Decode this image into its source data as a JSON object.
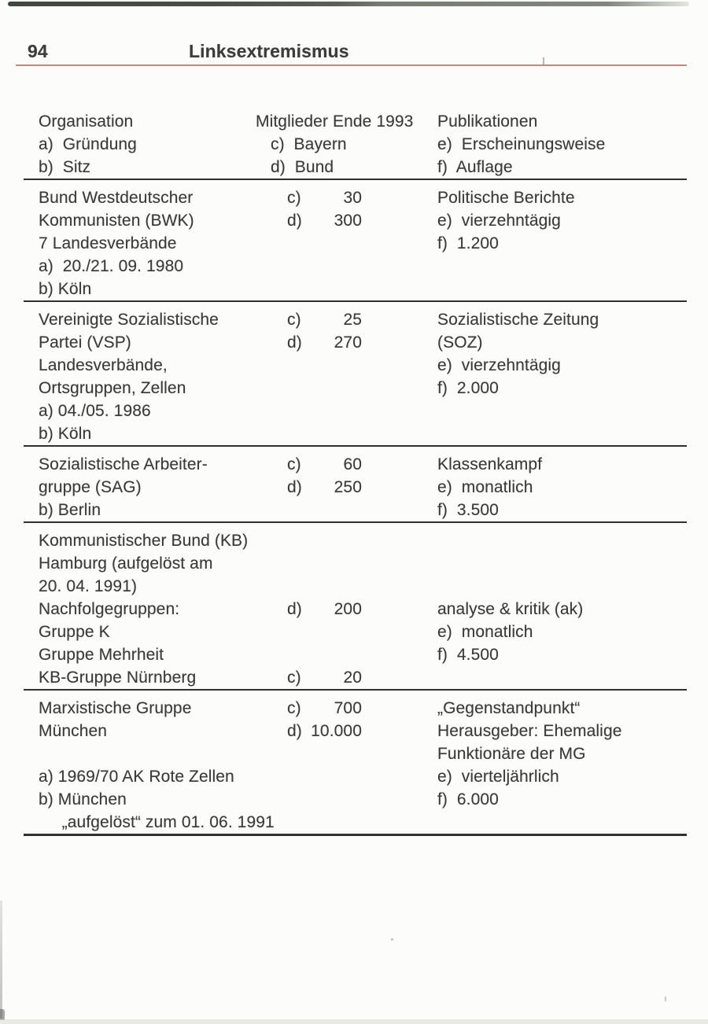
{
  "header": {
    "page_number": "94",
    "chapter_title": "Linksextremismus"
  },
  "colors": {
    "accent_red_rule": "#b56962",
    "table_rule": "#303030",
    "text": "#3a3a3a",
    "paper": "#fcfcfa"
  },
  "table": {
    "legend": {
      "col1": [
        "Organisation",
        "a)  Gründung",
        "b)  Sitz"
      ],
      "col2": [
        "Mitglieder Ende 1993",
        "c)  Bayern",
        "d)  Bund"
      ],
      "col3": [
        "Publikationen",
        "e)  Erscheinungsweise",
        "f)  Auflage"
      ]
    },
    "rows": [
      {
        "col1": [
          "Bund Westdeutscher",
          "Kommunisten (BWK)",
          "7 Landesverbände",
          "a)  20./21. 09. 1980",
          "b) Köln"
        ],
        "col2": [
          {
            "line": 1,
            "letter": "c)",
            "value": "30"
          },
          {
            "line": 2,
            "letter": "d)",
            "value": "300"
          }
        ],
        "col3": [
          {
            "line": 1,
            "text": "Politische Berichte"
          },
          {
            "line": 2,
            "text": "e)  vierzehntägig"
          },
          {
            "line": 3,
            "text": "f)  1.200"
          }
        ]
      },
      {
        "col1": [
          "Vereinigte Sozialistische",
          "Partei (VSP)",
          "Landesverbände,",
          "Ortsgruppen, Zellen",
          "a) 04./05. 1986",
          "b) Köln"
        ],
        "col2": [
          {
            "line": 1,
            "letter": "c)",
            "value": "25"
          },
          {
            "line": 2,
            "letter": "d)",
            "value": "270"
          }
        ],
        "col3": [
          {
            "line": 1,
            "text": "Sozialistische Zeitung"
          },
          {
            "line": 2,
            "text": "(SOZ)"
          },
          {
            "line": 3,
            "text": "e)  vierzehntägig"
          },
          {
            "line": 4,
            "text": "f)  2.000"
          }
        ]
      },
      {
        "col1": [
          "Sozialistische Arbeiter-",
          "gruppe (SAG)",
          "b) Berlin"
        ],
        "col2": [
          {
            "line": 1,
            "letter": "c)",
            "value": "60"
          },
          {
            "line": 2,
            "letter": "d)",
            "value": "250"
          }
        ],
        "col3": [
          {
            "line": 1,
            "text": "Klassenkampf"
          },
          {
            "line": 2,
            "text": "e)  monatlich"
          },
          {
            "line": 3,
            "text": "f)  3.500"
          }
        ]
      },
      {
        "col1": [
          "Kommunistischer Bund (KB)",
          "Hamburg (aufgelöst am",
          "20. 04. 1991)",
          "Nachfolgegruppen:",
          "Gruppe K",
          "Gruppe Mehrheit",
          "KB-Gruppe Nürnberg"
        ],
        "col2": [
          {
            "line": 4,
            "letter": "d)",
            "value": "200"
          },
          {
            "line": 7,
            "letter": "c)",
            "value": "20"
          }
        ],
        "col3": [
          {
            "line": 4,
            "text": "analyse & kritik (ak)"
          },
          {
            "line": 5,
            "text": "e)  monatlich"
          },
          {
            "line": 6,
            "text": "f)  4.500"
          }
        ]
      },
      {
        "col1": [
          "Marxistische Gruppe",
          "München",
          "",
          "a) 1969/70 AK Rote Zellen",
          "b) München",
          "     „aufgelöst“ zum 01. 06. 1991"
        ],
        "col2": [
          {
            "line": 1,
            "letter": "c)",
            "value": "700"
          },
          {
            "line": 2,
            "letter": "d)",
            "value": "10.000"
          }
        ],
        "col3": [
          {
            "line": 1,
            "text": "„Gegenstandpunkt“"
          },
          {
            "line": 2,
            "text": "Herausgeber: Ehemalige"
          },
          {
            "line": 3,
            "text": "Funktionäre der MG"
          },
          {
            "line": 4,
            "text": "e)  vierteljährlich"
          },
          {
            "line": 5,
            "text": "f)  6.000"
          }
        ]
      }
    ]
  }
}
